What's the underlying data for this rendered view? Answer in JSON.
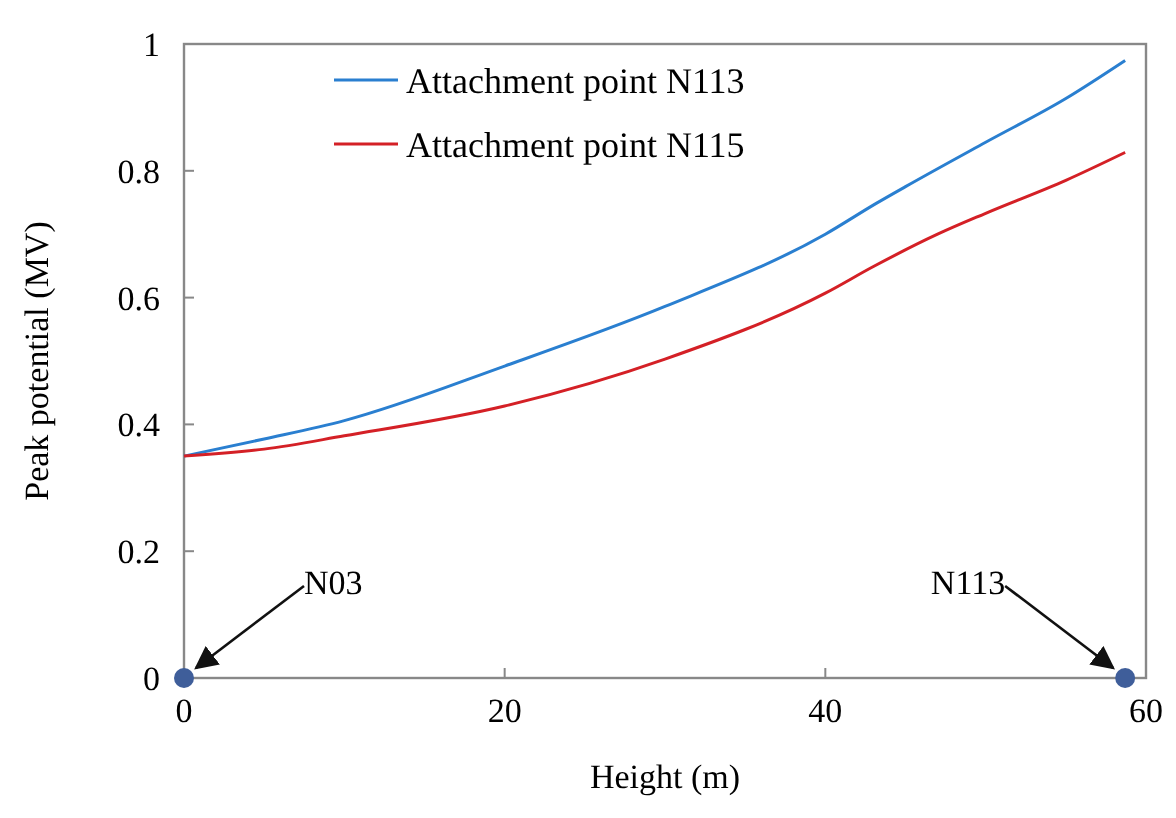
{
  "chart_data": {
    "type": "line",
    "xlabel": "Height  (m)",
    "ylabel": "Peak potential   (MV)",
    "xlim": [
      0,
      60
    ],
    "xticks": [
      0,
      20,
      40,
      60
    ],
    "ylim": [
      0,
      1
    ],
    "yticks": [
      0,
      0.2,
      0.4,
      0.6,
      0.8,
      1
    ],
    "legend": "top left",
    "grid": false,
    "series": [
      {
        "name": "Attachment point N113",
        "color": "#2a7fd0",
        "x": [
          0,
          5,
          10,
          20,
          30,
          40,
          43.2,
          45,
          50,
          55,
          58.7
        ],
        "values": [
          0.35,
          0.377,
          0.406,
          0.492,
          0.586,
          0.7,
          0.749,
          0.775,
          0.845,
          0.914,
          0.974
        ]
      },
      {
        "name": "Attachment point N115",
        "color": "#d42026",
        "x": [
          0,
          5,
          10,
          20,
          30,
          40,
          43,
          47,
          50,
          55,
          58.7
        ],
        "values": [
          0.35,
          0.361,
          0.382,
          0.429,
          0.503,
          0.607,
          0.649,
          0.7,
          0.733,
          0.785,
          0.829
        ]
      },
      {
        "type": "scatter",
        "color": "#3f5e9a",
        "x": [
          0,
          58.7
        ],
        "values": [
          0,
          0
        ],
        "marker": "circle"
      }
    ],
    "annotations": [
      {
        "text": "N03",
        "x": 0,
        "y": 0
      },
      {
        "text": "N113",
        "x": 58.7,
        "y": 0
      }
    ]
  }
}
